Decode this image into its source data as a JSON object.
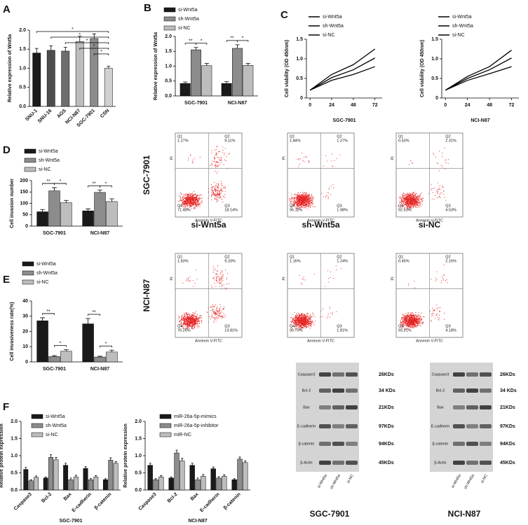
{
  "chart_data": [
    {
      "type": "bar",
      "panel": "A",
      "ylabel": "Relative expression of Wnt5a",
      "categories": [
        "SNU-1",
        "SNU-16",
        "AGS",
        "NCI-N87",
        "SGC-7901",
        "CSN"
      ],
      "values": [
        1.4,
        1.47,
        1.45,
        1.7,
        1.78,
        1.0
      ],
      "errors": [
        0.12,
        0.12,
        0.1,
        0.14,
        0.12,
        0.05
      ],
      "colors": [
        "#1a1a1a",
        "#4d4d4d",
        "#6e6e6e",
        "#bdbdbd",
        "#8c8c8c",
        "#d0d0d0"
      ],
      "ylim": [
        0,
        2
      ],
      "yticks": [
        {
          "value": 0,
          "label": "0.0"
        },
        0.5,
        {
          "value": 1,
          "label": "1.0"
        },
        1.5,
        {
          "value": 2,
          "label": "2.0"
        }
      ],
      "significance": [
        {
          "from": 0,
          "to": 5,
          "label": "*"
        },
        {
          "from": 1,
          "to": 5,
          "label": "*"
        },
        {
          "from": 2,
          "to": 5,
          "label": "*"
        },
        {
          "from": 3,
          "to": 5,
          "label": "*"
        },
        {
          "from": 4,
          "to": 5,
          "label": "*"
        }
      ]
    },
    {
      "type": "bar",
      "panel": "B",
      "ylabel": "Relative expression of Wnt5a",
      "categories": [
        "SGC-7901",
        "NCI-N87"
      ],
      "series": [
        {
          "name": "si-Wnt5a",
          "color": "#1a1a1a",
          "values": [
            0.42,
            0.42
          ],
          "errors": [
            0.05,
            0.06
          ]
        },
        {
          "name": "sh-Wnt5a",
          "color": "#8c8c8c",
          "values": [
            1.55,
            1.6
          ],
          "errors": [
            0.08,
            0.12
          ]
        },
        {
          "name": "si-NC",
          "color": "#bdbdbd",
          "values": [
            1.02,
            1.03
          ],
          "errors": [
            0.07,
            0.06
          ]
        }
      ],
      "ylim": [
        0,
        2
      ],
      "yticks": [
        {
          "value": 0,
          "label": "0.0"
        },
        0.5,
        {
          "value": 1,
          "label": "1.0"
        },
        1.5,
        {
          "value": 2,
          "label": "2.0"
        }
      ],
      "legend": "top-left",
      "significance": [
        {
          "category": 0,
          "from": 0,
          "to": 1,
          "label": "**"
        },
        {
          "category": 0,
          "from": 1,
          "to": 2,
          "label": "*"
        },
        {
          "category": 1,
          "from": 0,
          "to": 1,
          "label": "**"
        },
        {
          "category": 1,
          "from": 1,
          "to": 2,
          "label": "*"
        }
      ]
    },
    {
      "type": "line",
      "panel": "C",
      "ylabel": "Cell viability (OD 450nm)",
      "xlabel": "SGC-7901",
      "x": [
        0,
        24,
        48,
        72
      ],
      "series": [
        {
          "name": "si-Wnt5a",
          "color": "#000000",
          "values": [
            0.2,
            0.45,
            0.6,
            0.8
          ]
        },
        {
          "name": "sh-Wnt5a",
          "color": "#000000",
          "values": [
            0.2,
            0.6,
            0.85,
            1.25
          ]
        },
        {
          "name": "si-NC",
          "color": "#000000",
          "values": [
            0.2,
            0.52,
            0.72,
            1.02
          ]
        }
      ],
      "xlim": [
        -4,
        80
      ],
      "xticks": [
        0,
        24,
        48,
        72
      ],
      "ylim": [
        0,
        1.5
      ],
      "yticks": [
        0,
        0.5,
        {
          "value": 1,
          "label": "1.0"
        },
        1.5
      ],
      "legend": "top-left"
    },
    {
      "type": "line",
      "ylabel": "Cell viability (OD 450nm)",
      "xlabel": "NCI-N87",
      "x": [
        0,
        24,
        48,
        72
      ],
      "series": [
        {
          "name": "si-Wnt5a",
          "color": "#000000",
          "values": [
            0.2,
            0.45,
            0.62,
            0.8
          ]
        },
        {
          "name": "sh-Wnt5a",
          "color": "#000000",
          "values": [
            0.2,
            0.55,
            0.8,
            1.22
          ]
        },
        {
          "name": "si-NC",
          "color": "#000000",
          "values": [
            0.2,
            0.5,
            0.72,
            1.02
          ]
        }
      ],
      "xlim": [
        -4,
        80
      ],
      "xticks": [
        0,
        24,
        48,
        72
      ],
      "ylim": [
        0,
        1.5
      ],
      "yticks": [
        0,
        0.5,
        {
          "value": 1,
          "label": "1.0"
        },
        1.5
      ],
      "legend": "top-left"
    },
    {
      "type": "bar",
      "panel": "D",
      "ylabel": "Cell invasion number",
      "categories": [
        "SGC-7901",
        "NCI-N87"
      ],
      "series": [
        {
          "name": "si-Wnt5a",
          "color": "#1a1a1a",
          "values": [
            63,
            67
          ],
          "errors": [
            10,
            9
          ]
        },
        {
          "name": "sh-Wnt5a",
          "color": "#8c8c8c",
          "values": [
            155,
            148
          ],
          "errors": [
            14,
            10
          ]
        },
        {
          "name": "si-NC",
          "color": "#bdbdbd",
          "values": [
            103,
            108
          ],
          "errors": [
            10,
            12
          ]
        }
      ],
      "ylim": [
        0,
        200
      ],
      "yticks": [
        0,
        50,
        100,
        150,
        200
      ],
      "legend": "top-left",
      "significance": [
        {
          "category": 0,
          "from": 0,
          "to": 1,
          "label": "**"
        },
        {
          "category": 0,
          "from": 1,
          "to": 2,
          "label": "*"
        },
        {
          "category": 1,
          "from": 0,
          "to": 1,
          "label": "**"
        },
        {
          "category": 1,
          "from": 1,
          "to": 2,
          "label": "*"
        }
      ]
    },
    {
      "type": "bar",
      "panel": "E",
      "ylabel": "Cell invasiveness rate(%)",
      "categories": [
        "SGC-7901",
        "NCI-N87"
      ],
      "series": [
        {
          "name": "si-Wnt5a",
          "color": "#1a1a1a",
          "values": [
            27,
            25
          ],
          "errors": [
            2,
            3.5
          ]
        },
        {
          "name": "sh-Wnt5a",
          "color": "#8c8c8c",
          "values": [
            3.5,
            3.2
          ],
          "errors": [
            0.6,
            0.5
          ]
        },
        {
          "name": "si-NC",
          "color": "#bdbdbd",
          "values": [
            7,
            6.5
          ],
          "errors": [
            1,
            1.2
          ]
        }
      ],
      "ylim": [
        0,
        40
      ],
      "yticks": [
        0,
        10,
        20,
        30,
        40
      ],
      "legend": "top-left",
      "significance": [
        {
          "category": 0,
          "from": 0,
          "to": 1,
          "label": "**"
        },
        {
          "category": 0,
          "from": 1,
          "to": 2,
          "label": "*"
        },
        {
          "category": 1,
          "from": 0,
          "to": 1,
          "label": "**"
        },
        {
          "category": 1,
          "from": 1,
          "to": 2,
          "label": "*"
        }
      ]
    },
    {
      "type": "bar",
      "panel": "F",
      "ylabel": "Relative protein expression",
      "xlabel": "SGC-7901",
      "categories": [
        "Caspase3",
        "Bcl-2",
        "Bax",
        "E-cadherin",
        "β-catenin"
      ],
      "series": [
        {
          "name": "si-Wnt5a",
          "color": "#1a1a1a",
          "values": [
            0.6,
            0.35,
            0.72,
            0.63,
            0.3
          ],
          "errors": [
            0.06,
            0.03,
            0.06,
            0.05,
            0.03
          ]
        },
        {
          "name": "sh-Wnt5a",
          "color": "#8c8c8c",
          "values": [
            0.27,
            0.95,
            0.3,
            0.3,
            0.87
          ],
          "errors": [
            0.03,
            0.08,
            0.05,
            0.04,
            0.07
          ]
        },
        {
          "name": "si-NC",
          "color": "#bdbdbd",
          "values": [
            0.37,
            0.88,
            0.38,
            0.38,
            0.78
          ],
          "errors": [
            0.04,
            0.07,
            0.05,
            0.04,
            0.05
          ]
        }
      ],
      "ylim": [
        0,
        2
      ],
      "yticks": [
        {
          "value": 0,
          "label": "0.0"
        },
        0.5,
        {
          "value": 1,
          "label": "1.0"
        },
        1.5,
        {
          "value": 2,
          "label": "2.0"
        }
      ],
      "legend": "top-left"
    },
    {
      "type": "bar",
      "ylabel": "Relative protein expression",
      "xlabel": "NCI-N87",
      "categories": [
        "Caspase3",
        "Bcl-2",
        "Bax",
        "E-cadherin",
        "β-catenin"
      ],
      "series": [
        {
          "name": "miR-26a-5p-mimics",
          "color": "#1a1a1a",
          "values": [
            0.72,
            0.35,
            0.72,
            0.62,
            0.3
          ],
          "errors": [
            0.06,
            0.03,
            0.06,
            0.05,
            0.03
          ]
        },
        {
          "name": "miR-26a-5p-inhibitor",
          "color": "#8c8c8c",
          "values": [
            0.3,
            1.08,
            0.3,
            0.35,
            0.9
          ],
          "errors": [
            0.03,
            0.08,
            0.05,
            0.04,
            0.06
          ]
        },
        {
          "name": "miR-NC",
          "color": "#bdbdbd",
          "values": [
            0.38,
            0.85,
            0.4,
            0.4,
            0.8
          ],
          "errors": [
            0.04,
            0.07,
            0.05,
            0.04,
            0.05
          ]
        }
      ],
      "ylim": [
        0,
        2
      ],
      "yticks": [
        {
          "value": 0,
          "label": "0.0"
        },
        0.5,
        {
          "value": 1,
          "label": "1.0"
        },
        1.5,
        {
          "value": 2,
          "label": "2.0"
        }
      ],
      "legend": "top-left"
    }
  ],
  "flow_cytometry": {
    "x_label": "Annexin V-FITC",
    "y_label": "PI",
    "quadrant_names": [
      "Q1",
      "Q2",
      "Q3",
      "Q4"
    ],
    "rows": [
      "SGC-7901",
      "NCI-N87"
    ],
    "columns": [
      "si-Wnt5a",
      "sh-Wnt5a",
      "si-NC"
    ],
    "plots": [
      [
        {
          "q1": "1.27%",
          "q2": "9.11%",
          "q3": "18.14%",
          "q4": "71.48%"
        },
        {
          "q1": "1.84%",
          "q2": "1.27%",
          "q3": "1.98%",
          "q4": "95.11%"
        },
        {
          "q1": "0.53%",
          "q2": "2.31%",
          "q3": "4.53%",
          "q4": "92.63%"
        }
      ],
      [
        {
          "q1": "1.83%",
          "q2": "9.33%",
          "q3": "13.81%",
          "q4": "76.26%"
        },
        {
          "q1": "1.16%",
          "q2": "1.24%",
          "q3": "1.81%",
          "q4": "95.79%"
        },
        {
          "q1": "0.45%",
          "q2": "2.16%",
          "q3": "4.18%",
          "q4": "93.21%"
        }
      ]
    ]
  },
  "western_blots": {
    "proteins": [
      "Caspase3",
      "Bcl-2",
      "Bax",
      "E-cadherin",
      "β-catenin",
      "β-Actin"
    ],
    "sizes": [
      "26KDs",
      "34 KDs",
      "21KDs",
      "97KDs",
      "94KDs",
      "45KDs"
    ],
    "lanes": [
      "si-Wnt5a",
      "sh-Wnt5a",
      "si-NC"
    ],
    "cell_lines": [
      "SGC-7901",
      "NCI-N87"
    ]
  }
}
